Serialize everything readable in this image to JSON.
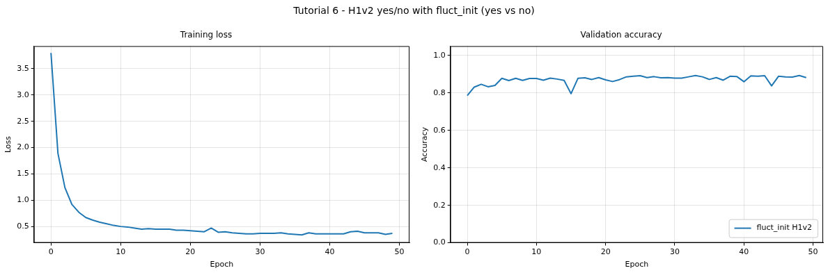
{
  "chart_data": [
    {
      "type": "line",
      "title": "Training loss",
      "xlabel": "Epoch",
      "ylabel": "Loss",
      "annotations": [
        "Tutorial 6 - H1v2 yes/no with fluct_init (yes vs no)"
      ],
      "x": [
        0,
        1,
        2,
        3,
        4,
        5,
        6,
        7,
        8,
        9,
        10,
        11,
        12,
        13,
        14,
        15,
        16,
        17,
        18,
        19,
        20,
        21,
        22,
        23,
        24,
        25,
        26,
        27,
        28,
        29,
        30,
        31,
        32,
        33,
        34,
        35,
        36,
        37,
        38,
        39,
        40,
        41,
        42,
        43,
        44,
        45,
        46,
        47,
        48,
        49
      ],
      "series": [
        {
          "color": "#1f77b4",
          "values": [
            3.8,
            1.89,
            1.24,
            0.92,
            0.77,
            0.67,
            0.62,
            0.58,
            0.55,
            0.52,
            0.5,
            0.49,
            0.47,
            0.45,
            0.46,
            0.45,
            0.45,
            0.45,
            0.43,
            0.43,
            0.42,
            0.41,
            0.4,
            0.47,
            0.39,
            0.4,
            0.38,
            0.37,
            0.36,
            0.36,
            0.37,
            0.37,
            0.37,
            0.38,
            0.36,
            0.35,
            0.34,
            0.38,
            0.36,
            0.36,
            0.36,
            0.36,
            0.36,
            0.4,
            0.41,
            0.38,
            0.38,
            0.38,
            0.35,
            0.37
          ]
        }
      ],
      "xlim": [
        -2.45,
        51.45
      ],
      "ylim": [
        0.19,
        3.93
      ],
      "xticks": [
        0,
        10,
        20,
        30,
        40,
        50
      ],
      "yticks": [
        0.5,
        {
          "value": 1,
          "label": "1.0"
        },
        1.5,
        {
          "value": 2,
          "label": "2.0"
        },
        2.5,
        {
          "value": 3,
          "label": "3.0"
        },
        3.5
      ],
      "grid": true,
      "legend": false
    },
    {
      "type": "line",
      "title": "Validation accuracy",
      "xlabel": "Epoch",
      "ylabel": "Accuracy",
      "x": [
        0,
        1,
        2,
        3,
        4,
        5,
        6,
        7,
        8,
        9,
        10,
        11,
        12,
        13,
        14,
        15,
        16,
        17,
        18,
        19,
        20,
        21,
        22,
        23,
        24,
        25,
        26,
        27,
        28,
        29,
        30,
        31,
        32,
        33,
        34,
        35,
        36,
        37,
        38,
        39,
        40,
        41,
        42,
        43,
        44,
        45,
        46,
        47,
        48,
        49
      ],
      "series": [
        {
          "name": "fluct_init H1v2",
          "color": "#1f77b4",
          "values": [
            0.786,
            0.831,
            0.846,
            0.833,
            0.84,
            0.878,
            0.866,
            0.878,
            0.867,
            0.877,
            0.877,
            0.868,
            0.879,
            0.874,
            0.867,
            0.796,
            0.878,
            0.881,
            0.872,
            0.882,
            0.87,
            0.861,
            0.871,
            0.886,
            0.889,
            0.892,
            0.882,
            0.887,
            0.881,
            0.882,
            0.879,
            0.879,
            0.886,
            0.893,
            0.886,
            0.872,
            0.882,
            0.868,
            0.889,
            0.887,
            0.86,
            0.891,
            0.889,
            0.892,
            0.838,
            0.889,
            0.886,
            0.885,
            0.893,
            0.882
          ]
        }
      ],
      "xlim": [
        -2.45,
        51.45
      ],
      "ylim": [
        0,
        1.05
      ],
      "xticks": [
        0,
        10,
        20,
        30,
        40,
        50
      ],
      "yticks": [
        {
          "value": 0,
          "label": "0.0"
        },
        0.2,
        0.4,
        0.6,
        0.8,
        {
          "value": 1,
          "label": "1.0"
        }
      ],
      "grid": true,
      "legend": "bottom right"
    }
  ]
}
